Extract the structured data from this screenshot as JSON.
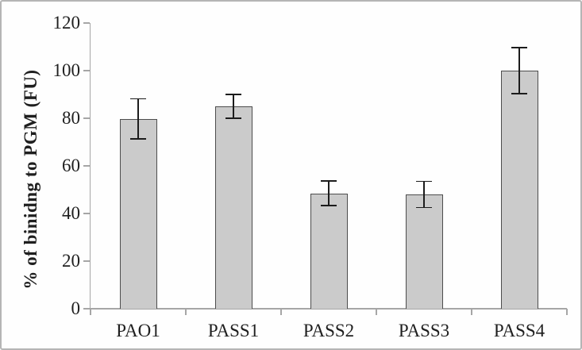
{
  "figure": {
    "background": "#fefefe",
    "border_color": "#b5b5b5"
  },
  "chart_data": {
    "type": "bar",
    "title": "",
    "xlabel": "",
    "ylabel": "% of binidng to PGM (FU)",
    "categories": [
      "PAO1",
      "PASS1",
      "PASS2",
      "PASS3",
      "PASS4"
    ],
    "values": [
      79.7,
      85,
      48.5,
      48,
      100
    ],
    "errors": [
      8.4,
      5,
      5.2,
      5.5,
      9.6
    ],
    "ylim": [
      0,
      120
    ],
    "yticks": [
      0,
      20,
      40,
      60,
      80,
      100,
      120
    ],
    "grid": false,
    "legend": false,
    "colors": {
      "bar_fill": "#cbcbcb",
      "bar_border": "#4d4d4d",
      "error_bar": "#1c1c1c",
      "axis": "#a6a6a6",
      "text": "#1f1f1f"
    }
  }
}
